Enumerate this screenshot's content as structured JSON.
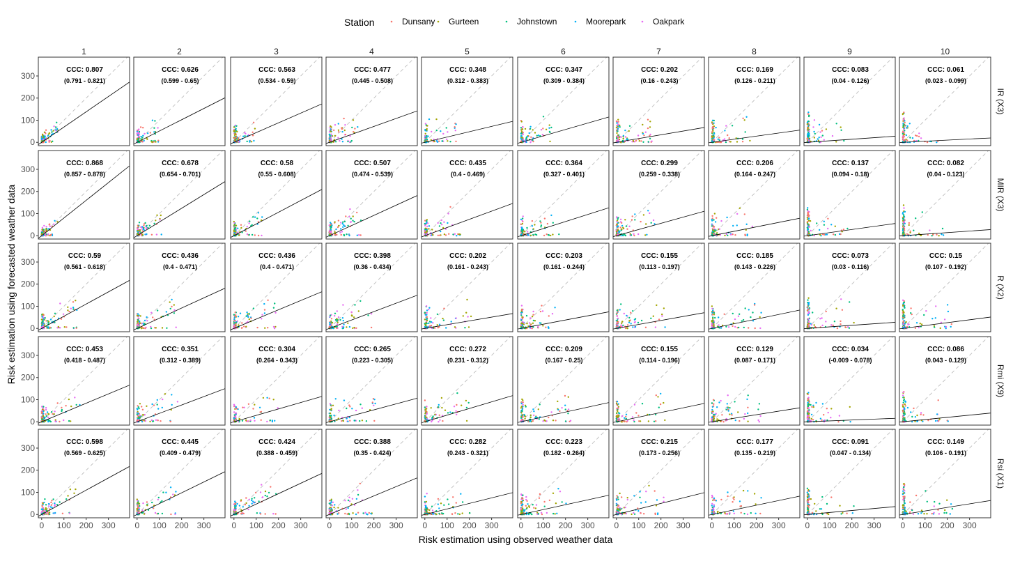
{
  "chart_data": {
    "type": "scatter",
    "title": "",
    "xlabel": "Risk estimation using observed weather data",
    "ylabel": "Risk estimation using forecasted weather data",
    "xlim": [
      -15,
      395
    ],
    "ylim": [
      -15,
      385
    ],
    "xticks": [
      0,
      100,
      200,
      300
    ],
    "yticks": [
      0,
      100,
      200,
      300
    ],
    "grid": false,
    "legend": {
      "title": "Station",
      "position": "top",
      "entries": [
        {
          "name": "Dunsany",
          "color": "#F8766D"
        },
        {
          "name": "Gurteen",
          "color": "#A3A500"
        },
        {
          "name": "Johnstown",
          "color": "#00BF7D"
        },
        {
          "name": "Moorepark",
          "color": "#00B0F6"
        },
        {
          "name": "Oakpark",
          "color": "#E76BF3"
        }
      ]
    },
    "columns": [
      "1",
      "2",
      "3",
      "4",
      "5",
      "6",
      "7",
      "8",
      "9",
      "10"
    ],
    "rows": [
      "IR (X3)",
      "MIR (X3)",
      "R (X2)",
      "Rmi (X9)",
      "Rsi (X1)"
    ],
    "reference_line": "y = x (dashed)",
    "panels": [
      [
        {
          "ccc": "CCC: 0.807",
          "ci": "(0.791 - 0.821)",
          "slope": 0.69,
          "intercept": 0,
          "spread": 45
        },
        {
          "ccc": "CCC: 0.626",
          "ci": "(0.599 - 0.65)",
          "slope": 0.51,
          "intercept": 0,
          "spread": 60
        },
        {
          "ccc": "CCC: 0.563",
          "ci": "(0.534 - 0.59)",
          "slope": 0.44,
          "intercept": 0,
          "spread": 70
        },
        {
          "ccc": "CCC: 0.477",
          "ci": "(0.445 - 0.508)",
          "slope": 0.36,
          "intercept": 0,
          "spread": 80
        },
        {
          "ccc": "CCC: 0.348",
          "ci": "(0.312 - 0.383)",
          "slope": 0.24,
          "intercept": 0,
          "spread": 90
        },
        {
          "ccc": "CCC: 0.347",
          "ci": "(0.309 - 0.384)",
          "slope": 0.29,
          "intercept": 0,
          "spread": 90
        },
        {
          "ccc": "CCC: 0.202",
          "ci": "(0.16 - 0.243)",
          "slope": 0.17,
          "intercept": 0,
          "spread": 100
        },
        {
          "ccc": "CCC: 0.169",
          "ci": "(0.126 - 0.211)",
          "slope": 0.14,
          "intercept": 0,
          "spread": 110
        },
        {
          "ccc": "CCC: 0.083",
          "ci": "(0.04 - 0.126)",
          "slope": 0.07,
          "intercept": 0,
          "spread": 110
        },
        {
          "ccc": "CCC: 0.061",
          "ci": "(0.023 - 0.099)",
          "slope": 0.05,
          "intercept": 0,
          "spread": 110
        }
      ],
      [
        {
          "ccc": "CCC: 0.868",
          "ci": "(0.857 - 0.878)",
          "slope": 0.8,
          "intercept": 0,
          "spread": 50
        },
        {
          "ccc": "CCC: 0.678",
          "ci": "(0.654 - 0.701)",
          "slope": 0.62,
          "intercept": 0,
          "spread": 70
        },
        {
          "ccc": "CCC: 0.58",
          "ci": "(0.55 - 0.608)",
          "slope": 0.53,
          "intercept": 0,
          "spread": 80
        },
        {
          "ccc": "CCC: 0.507",
          "ci": "(0.474 - 0.539)",
          "slope": 0.46,
          "intercept": 0,
          "spread": 90
        },
        {
          "ccc": "CCC: 0.435",
          "ci": "(0.4 - 0.469)",
          "slope": 0.37,
          "intercept": 0,
          "spread": 100
        },
        {
          "ccc": "CCC: 0.364",
          "ci": "(0.327 - 0.401)",
          "slope": 0.32,
          "intercept": 0,
          "spread": 110
        },
        {
          "ccc": "CCC: 0.299",
          "ci": "(0.259 - 0.338)",
          "slope": 0.28,
          "intercept": 0,
          "spread": 110
        },
        {
          "ccc": "CCC: 0.206",
          "ci": "(0.164 - 0.247)",
          "slope": 0.2,
          "intercept": 0,
          "spread": 120
        },
        {
          "ccc": "CCC: 0.137",
          "ci": "(0.094 - 0.18)",
          "slope": 0.14,
          "intercept": 0,
          "spread": 120
        },
        {
          "ccc": "CCC: 0.082",
          "ci": "(0.04 - 0.123)",
          "slope": 0.07,
          "intercept": 0,
          "spread": 120
        }
      ],
      [
        {
          "ccc": "CCC: 0.59",
          "ci": "(0.561 - 0.618)",
          "slope": 0.55,
          "intercept": 0,
          "spread": 100
        },
        {
          "ccc": "CCC: 0.436",
          "ci": "(0.4 - 0.471)",
          "slope": 0.46,
          "intercept": 0,
          "spread": 110
        },
        {
          "ccc": "CCC: 0.436",
          "ci": "(0.4 - 0.471)",
          "slope": 0.42,
          "intercept": 0,
          "spread": 120
        },
        {
          "ccc": "CCC: 0.398",
          "ci": "(0.36 - 0.434)",
          "slope": 0.38,
          "intercept": 0,
          "spread": 120
        },
        {
          "ccc": "CCC: 0.202",
          "ci": "(0.161 - 0.243)",
          "slope": 0.17,
          "intercept": 0,
          "spread": 130
        },
        {
          "ccc": "CCC: 0.203",
          "ci": "(0.161 - 0.244)",
          "slope": 0.19,
          "intercept": 0,
          "spread": 130
        },
        {
          "ccc": "CCC: 0.155",
          "ci": "(0.113 - 0.197)",
          "slope": 0.18,
          "intercept": 0,
          "spread": 140
        },
        {
          "ccc": "CCC: 0.185",
          "ci": "(0.143 - 0.226)",
          "slope": 0.21,
          "intercept": 0,
          "spread": 140
        },
        {
          "ccc": "CCC: 0.073",
          "ci": "(0.03 - 0.116)",
          "slope": 0.07,
          "intercept": 0,
          "spread": 140
        },
        {
          "ccc": "CCC: 0.15",
          "ci": "(0.107 - 0.192)",
          "slope": 0.13,
          "intercept": 0,
          "spread": 140
        }
      ],
      [
        {
          "ccc": "CCC: 0.453",
          "ci": "(0.418 - 0.487)",
          "slope": 0.42,
          "intercept": 0,
          "spread": 110
        },
        {
          "ccc": "CCC: 0.351",
          "ci": "(0.312 - 0.389)",
          "slope": 0.38,
          "intercept": 0,
          "spread": 120
        },
        {
          "ccc": "CCC: 0.304",
          "ci": "(0.264 - 0.343)",
          "slope": 0.29,
          "intercept": 0,
          "spread": 130
        },
        {
          "ccc": "CCC: 0.265",
          "ci": "(0.223 - 0.305)",
          "slope": 0.27,
          "intercept": 0,
          "spread": 130
        },
        {
          "ccc": "CCC: 0.272",
          "ci": "(0.231 - 0.312)",
          "slope": 0.3,
          "intercept": 0,
          "spread": 130
        },
        {
          "ccc": "CCC: 0.209",
          "ci": "(0.167 - 0.25)",
          "slope": 0.22,
          "intercept": 0,
          "spread": 140
        },
        {
          "ccc": "CCC: 0.155",
          "ci": "(0.114 - 0.196)",
          "slope": 0.21,
          "intercept": 0,
          "spread": 140
        },
        {
          "ccc": "CCC: 0.129",
          "ci": "(0.087 - 0.171)",
          "slope": 0.16,
          "intercept": 0,
          "spread": 140
        },
        {
          "ccc": "CCC: 0.034",
          "ci": "(-0.009 - 0.078)",
          "slope": 0.04,
          "intercept": 0,
          "spread": 140
        },
        {
          "ccc": "CCC: 0.086",
          "ci": "(0.043 - 0.129)",
          "slope": 0.1,
          "intercept": 0,
          "spread": 140
        }
      ],
      [
        {
          "ccc": "CCC: 0.598",
          "ci": "(0.569 - 0.625)",
          "slope": 0.55,
          "intercept": 0,
          "spread": 100
        },
        {
          "ccc": "CCC: 0.445",
          "ci": "(0.409 - 0.479)",
          "slope": 0.49,
          "intercept": 0,
          "spread": 110
        },
        {
          "ccc": "CCC: 0.424",
          "ci": "(0.388 - 0.459)",
          "slope": 0.47,
          "intercept": 0,
          "spread": 120
        },
        {
          "ccc": "CCC: 0.388",
          "ci": "(0.35 - 0.424)",
          "slope": 0.42,
          "intercept": 0,
          "spread": 120
        },
        {
          "ccc": "CCC: 0.282",
          "ci": "(0.243 - 0.321)",
          "slope": 0.25,
          "intercept": 0,
          "spread": 130
        },
        {
          "ccc": "CCC: 0.223",
          "ci": "(0.182 - 0.264)",
          "slope": 0.22,
          "intercept": 0,
          "spread": 130
        },
        {
          "ccc": "CCC: 0.215",
          "ci": "(0.173 - 0.256)",
          "slope": 0.25,
          "intercept": 0,
          "spread": 140
        },
        {
          "ccc": "CCC: 0.177",
          "ci": "(0.135 - 0.219)",
          "slope": 0.21,
          "intercept": 0,
          "spread": 140
        },
        {
          "ccc": "CCC: 0.091",
          "ci": "(0.047 - 0.134)",
          "slope": 0.09,
          "intercept": 0,
          "spread": 140
        },
        {
          "ccc": "CCC: 0.149",
          "ci": "(0.106 - 0.191)",
          "slope": 0.16,
          "intercept": 0,
          "spread": 140
        }
      ]
    ]
  }
}
